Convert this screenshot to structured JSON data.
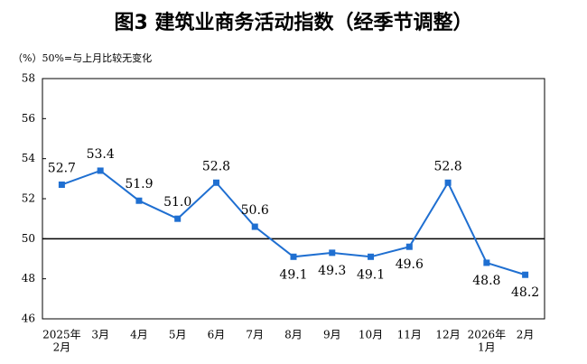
{
  "chart_data": {
    "type": "line",
    "title": "图3  建筑业商务活动指数（经季节调整）",
    "subtitle": "（%）50%=与上月比较无变化",
    "categories": [
      [
        "2025年",
        "2月"
      ],
      [
        "3月"
      ],
      [
        "4月"
      ],
      [
        "5月"
      ],
      [
        "6月"
      ],
      [
        "7月"
      ],
      [
        "8月"
      ],
      [
        "9月"
      ],
      [
        "10月"
      ],
      [
        "11月"
      ],
      [
        "12月"
      ],
      [
        "2026年",
        "1月"
      ],
      [
        "2月"
      ]
    ],
    "series": [
      {
        "color": "#1f6fd1",
        "values": [
          52.7,
          53.4,
          51.9,
          51.0,
          52.8,
          50.6,
          49.1,
          49.3,
          49.1,
          49.6,
          52.8,
          48.8,
          48.2
        ],
        "value_labels": [
          "52.7",
          "53.4",
          "51.9",
          "51.0",
          "52.8",
          "50.6",
          "49.1",
          "49.3",
          "49.1",
          "49.6",
          "52.8",
          "48.8",
          "48.2"
        ]
      }
    ],
    "ylim": [
      46,
      58
    ],
    "yticks": [
      46,
      48,
      50,
      52,
      54,
      56,
      58
    ],
    "reference_line": 50
  }
}
